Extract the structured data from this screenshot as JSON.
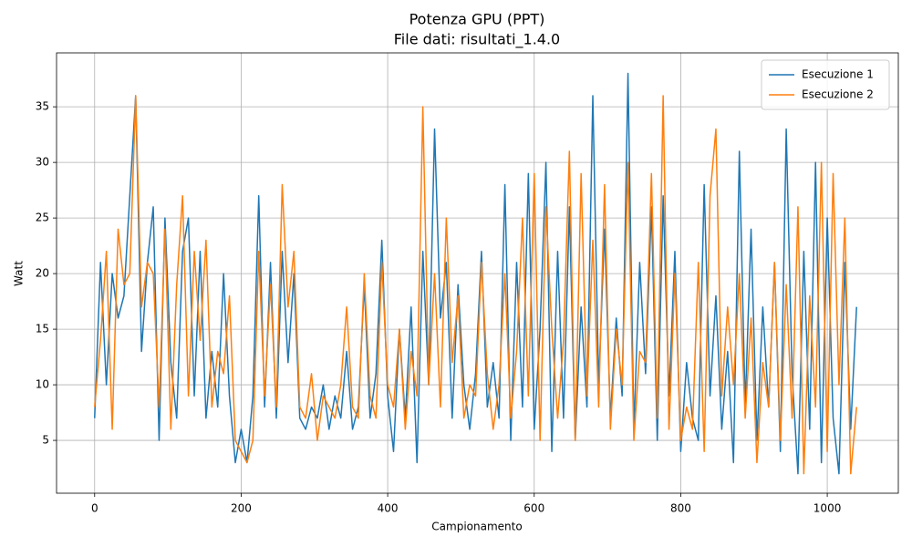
{
  "chart_data": {
    "type": "line",
    "title": "Potenza GPU (PPT)",
    "subtitle": "File dati: risultati_1.4.0",
    "x_label": "Campionamento",
    "y_label": "Watt",
    "x": [
      0,
      8,
      16,
      24,
      32,
      40,
      48,
      56,
      64,
      72,
      80,
      88,
      96,
      104,
      112,
      120,
      128,
      136,
      144,
      152,
      160,
      168,
      176,
      184,
      192,
      200,
      208,
      216,
      224,
      232,
      240,
      248,
      256,
      264,
      272,
      280,
      288,
      296,
      304,
      312,
      320,
      328,
      336,
      344,
      352,
      360,
      368,
      376,
      384,
      392,
      400,
      408,
      416,
      424,
      432,
      440,
      448,
      456,
      464,
      472,
      480,
      488,
      496,
      504,
      512,
      520,
      528,
      536,
      544,
      552,
      560,
      568,
      576,
      584,
      592,
      600,
      608,
      616,
      624,
      632,
      640,
      648,
      656,
      664,
      672,
      680,
      688,
      696,
      704,
      712,
      720,
      728,
      736,
      744,
      752,
      760,
      768,
      776,
      784,
      792,
      800,
      808,
      816,
      824,
      832,
      840,
      848,
      856,
      864,
      872,
      880,
      888,
      896,
      904,
      912,
      920,
      928,
      936,
      944,
      952,
      960,
      968,
      976,
      984,
      992,
      1000,
      1008,
      1016,
      1024,
      1032,
      1040
    ],
    "series": [
      {
        "name": "Esecuzione 1",
        "color": "#1f77b4",
        "values": [
          7,
          21,
          10,
          20,
          16,
          18,
          27,
          36,
          13,
          21,
          26,
          5,
          25,
          12,
          7,
          22,
          25,
          9,
          22,
          7,
          13,
          8,
          20,
          9,
          3,
          6,
          3,
          9,
          27,
          8,
          21,
          7,
          22,
          12,
          20,
          7,
          6,
          8,
          7,
          10,
          6,
          9,
          7,
          13,
          6,
          8,
          19,
          7,
          11,
          23,
          9,
          4,
          15,
          7,
          17,
          3,
          22,
          10,
          33,
          16,
          21,
          7,
          19,
          10,
          6,
          11,
          22,
          8,
          12,
          7,
          28,
          5,
          21,
          8,
          29,
          6,
          15,
          30,
          4,
          22,
          7,
          26,
          5,
          17,
          8,
          36,
          10,
          24,
          7,
          16,
          9,
          38,
          6,
          21,
          11,
          26,
          5,
          27,
          9,
          22,
          4,
          12,
          7,
          5,
          28,
          9,
          18,
          6,
          13,
          3,
          31,
          8,
          24,
          5,
          17,
          8,
          21,
          4,
          33,
          11,
          2,
          22,
          6,
          30,
          3,
          25,
          7,
          2,
          21,
          6,
          17
        ]
      },
      {
        "name": "Esecuzione 2",
        "color": "#ff7f0e",
        "values": [
          8,
          14,
          22,
          6,
          24,
          19,
          20,
          36,
          17,
          21,
          20,
          8,
          24,
          6,
          19,
          27,
          9,
          22,
          14,
          23,
          8,
          13,
          11,
          18,
          5,
          4,
          3,
          5,
          22,
          9,
          19,
          8,
          28,
          17,
          22,
          8,
          7,
          11,
          5,
          9,
          8,
          7,
          10,
          17,
          8,
          7,
          20,
          9,
          7,
          21,
          10,
          8,
          15,
          6,
          13,
          9,
          35,
          10,
          20,
          8,
          25,
          12,
          18,
          7,
          10,
          9,
          21,
          11,
          6,
          10,
          20,
          7,
          13,
          25,
          9,
          29,
          5,
          26,
          15,
          7,
          14,
          31,
          5,
          29,
          9,
          23,
          8,
          28,
          6,
          15,
          10,
          30,
          5,
          13,
          12,
          29,
          7,
          36,
          6,
          20,
          5,
          8,
          6,
          21,
          4,
          27,
          33,
          9,
          17,
          10,
          20,
          7,
          16,
          3,
          12,
          8,
          21,
          5,
          19,
          7,
          26,
          2,
          18,
          8,
          30,
          4,
          29,
          10,
          25,
          2,
          8
        ]
      }
    ],
    "xlim": [
      -52,
      1097
    ],
    "ylim": [
      0.25,
      39.85
    ],
    "xticks": [
      0,
      200,
      400,
      600,
      800,
      1000
    ],
    "yticks": [
      5,
      10,
      15,
      20,
      25,
      30,
      35
    ],
    "grid": true,
    "legend": "upper-right"
  }
}
